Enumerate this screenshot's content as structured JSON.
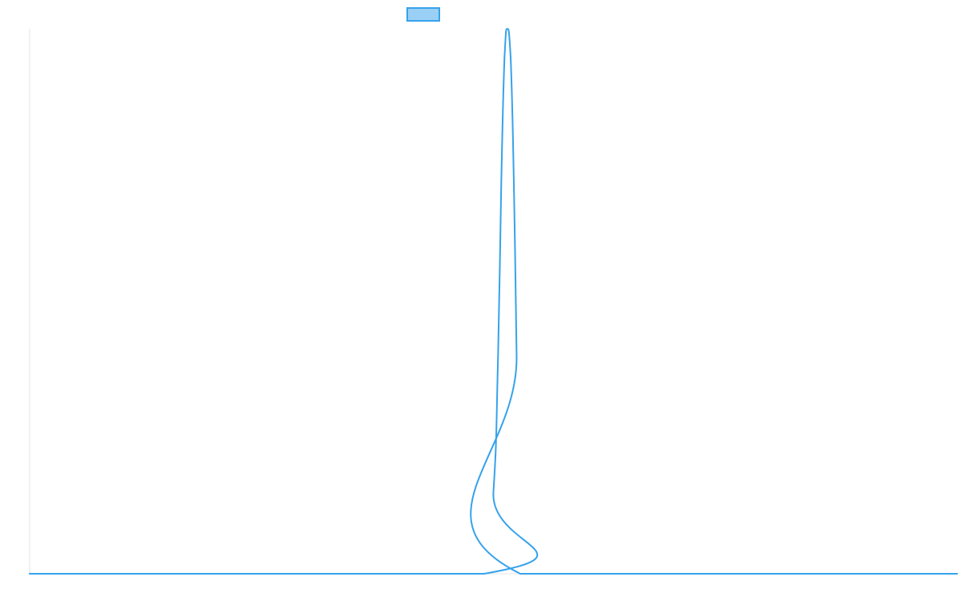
{
  "chart_data": {
    "type": "line",
    "title": "",
    "xlabel": "",
    "ylabel": "",
    "grid": false,
    "legend": {
      "placement": "top-center",
      "entries": [
        {
          "name": "",
          "color": "#36a2eb",
          "fill": "#9ad0f5"
        }
      ]
    },
    "xlim": [
      0,
      1
    ],
    "ylim": [
      0,
      1
    ],
    "series": [
      {
        "name": "",
        "color": "#36a2eb",
        "x": [
          0.0,
          0.49,
          0.5,
          0.505,
          0.5085,
          0.512,
          0.515,
          0.5185,
          0.522,
          0.525,
          0.529,
          1.0
        ],
        "values": [
          0.0,
          0.0,
          0.15,
          0.4,
          0.72,
          0.95,
          1.0,
          0.95,
          0.72,
          0.4,
          0.0,
          0.0
        ]
      }
    ],
    "axis_line_color": "#e6e6e6"
  }
}
